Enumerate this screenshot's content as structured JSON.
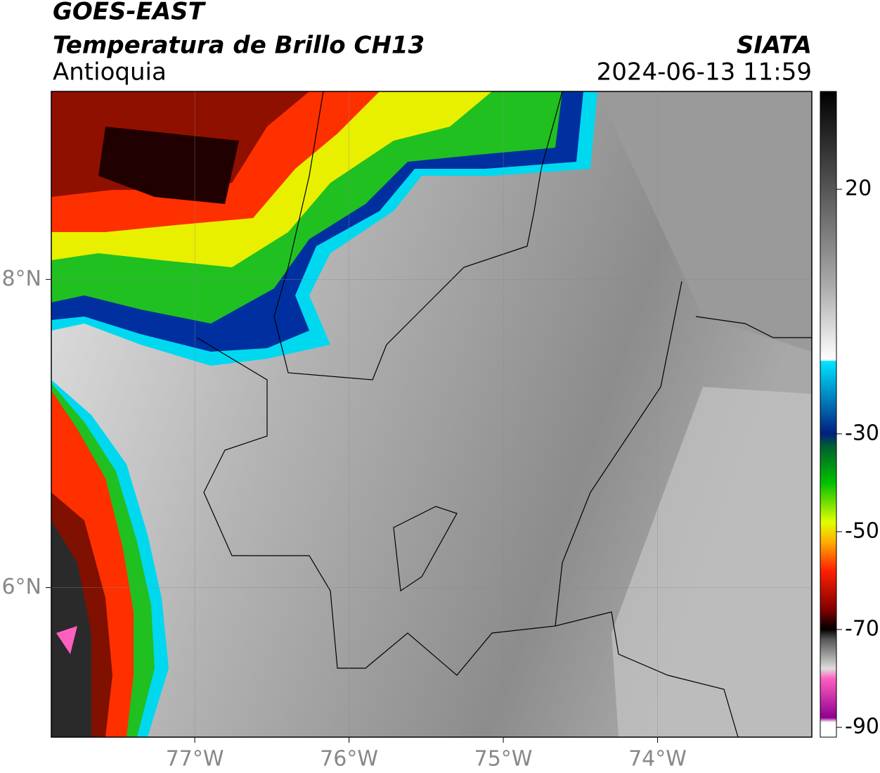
{
  "header": {
    "title": "GOES-EAST",
    "subtitle": "Temperatura de Brillo CH13",
    "region": "Antioquia",
    "source": "SIATA",
    "datetime": "2024-06-13 11:59"
  },
  "map": {
    "xlim": [
      -77.93,
      -73.0
    ],
    "ylim": [
      5.03,
      9.22
    ],
    "xticks": [
      {
        "value": -77,
        "label": "77°W"
      },
      {
        "value": -76,
        "label": "76°W"
      },
      {
        "value": -75,
        "label": "75°W"
      },
      {
        "value": -74,
        "label": "74°W"
      }
    ],
    "yticks": [
      {
        "value": 8,
        "label": "8°N"
      },
      {
        "value": 6,
        "label": "6°N"
      }
    ]
  },
  "colorbar": {
    "lim": [
      -92,
      40
    ],
    "ticks": [
      20,
      -30,
      -50,
      -70,
      -90
    ]
  }
}
